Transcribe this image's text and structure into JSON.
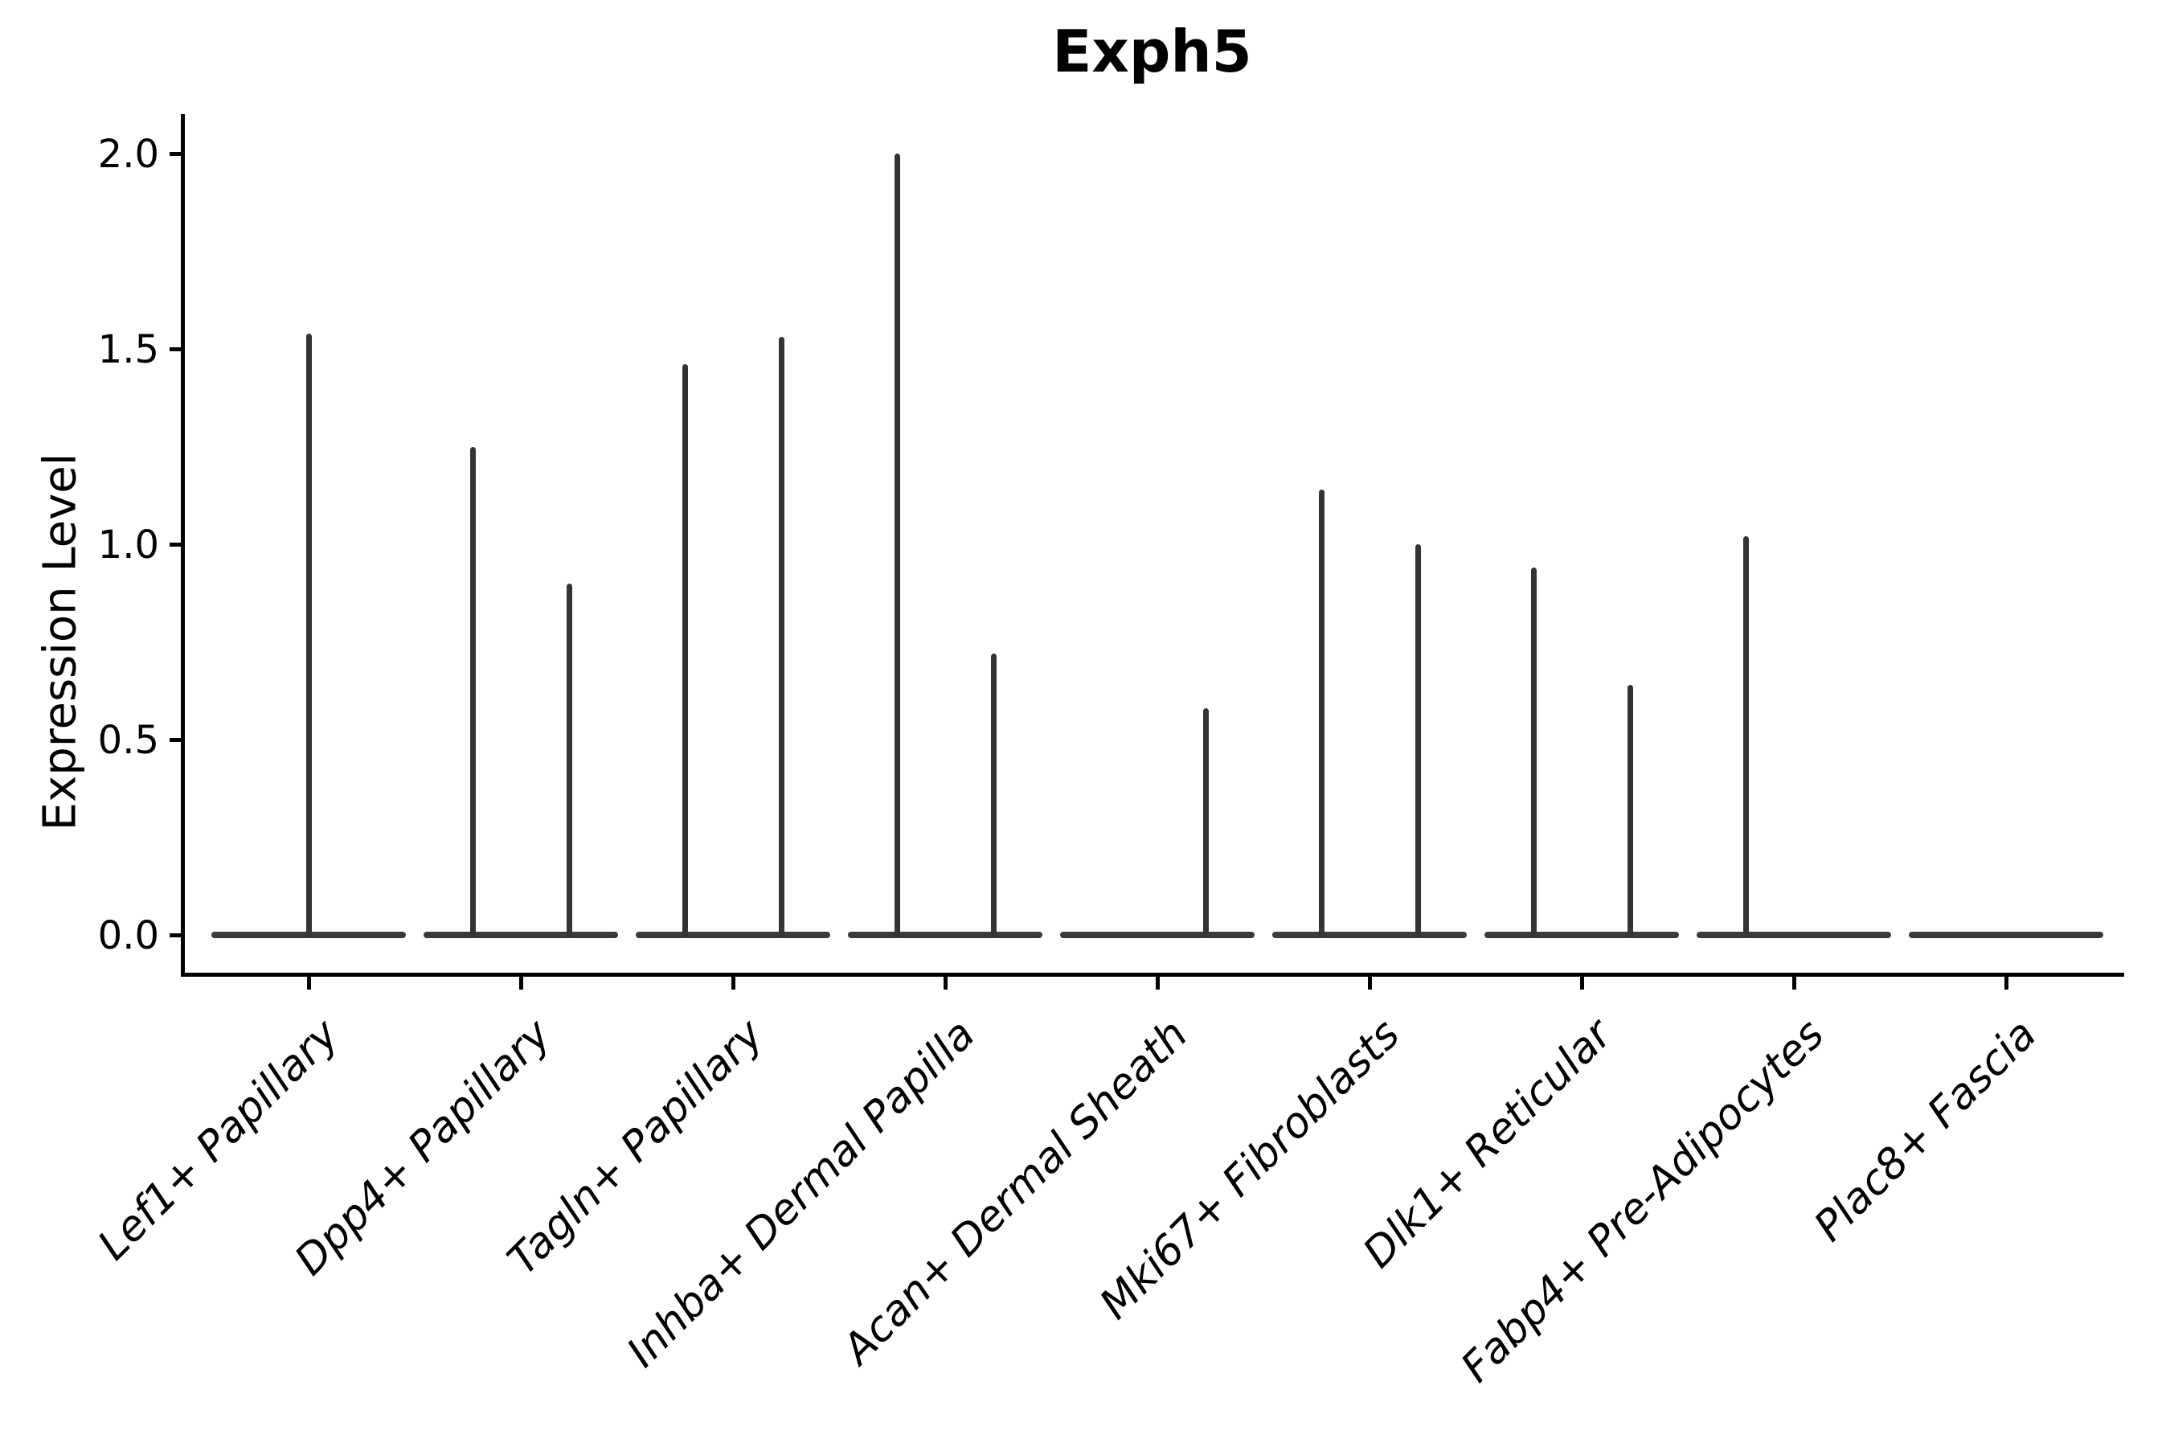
{
  "chart_data": {
    "type": "violin",
    "title": "Exph5",
    "xlabel": "",
    "ylabel": "Expression Level",
    "ylim": [
      0,
      2.07
    ],
    "ytick_values": [
      0,
      0.5,
      1,
      1.5,
      2
    ],
    "ytick_labels": [
      "0.0",
      "0.5",
      "1.0",
      "1.5",
      "2.0"
    ],
    "grid": "off",
    "legend": "none",
    "categories": [
      "Lef1+ Papillary",
      "Dpp4+ Papillary",
      "Tagln+ Papillary",
      "Inhba+ Dermal Papilla",
      "Acan+ Dermal Sheath",
      "Mki67+ Fibroblasts",
      "Dlk1+ Reticular",
      "Fabp4+ Pre-Adipocytes",
      "Plac8+ Fascia"
    ],
    "violins": [
      {
        "category": "Lef1+ Papillary",
        "baseline_at_zero": true,
        "spikes": [
          {
            "position": "center",
            "max": 1.54
          }
        ]
      },
      {
        "category": "Dpp4+ Papillary",
        "baseline_at_zero": true,
        "spikes": [
          {
            "position": "left",
            "max": 1.25
          },
          {
            "position": "right",
            "max": 0.9
          }
        ]
      },
      {
        "category": "Tagln+ Papillary",
        "baseline_at_zero": true,
        "spikes": [
          {
            "position": "left",
            "max": 1.46
          },
          {
            "position": "right",
            "max": 1.53
          }
        ]
      },
      {
        "category": "Inhba+ Dermal Papilla",
        "baseline_at_zero": true,
        "spikes": [
          {
            "position": "left",
            "max": 2.0
          },
          {
            "position": "right",
            "max": 0.72
          }
        ]
      },
      {
        "category": "Acan+ Dermal Sheath",
        "baseline_at_zero": true,
        "spikes": [
          {
            "position": "right",
            "max": 0.58
          }
        ]
      },
      {
        "category": "Mki67+ Fibroblasts",
        "baseline_at_zero": true,
        "spikes": [
          {
            "position": "left",
            "max": 1.14
          },
          {
            "position": "right",
            "max": 1.0
          }
        ]
      },
      {
        "category": "Dlk1+ Reticular",
        "baseline_at_zero": true,
        "spikes": [
          {
            "position": "left",
            "max": 0.94
          },
          {
            "position": "right",
            "max": 0.64
          }
        ]
      },
      {
        "category": "Fabp4+ Pre-Adipocytes",
        "baseline_at_zero": true,
        "spikes": [
          {
            "position": "left",
            "max": 1.02
          }
        ]
      },
      {
        "category": "Plac8+ Fascia",
        "baseline_at_zero": true,
        "spikes": []
      }
    ],
    "colors": {
      "violin": "#3a3a3a",
      "axis": "#000000",
      "text": "#000000",
      "background": "#ffffff"
    }
  }
}
